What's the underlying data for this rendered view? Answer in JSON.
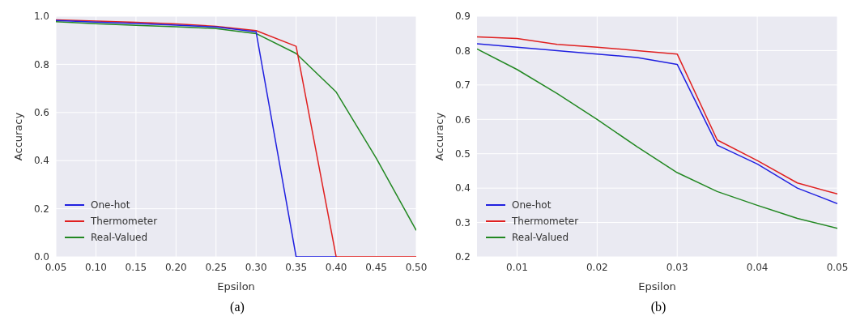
{
  "chart_data": [
    {
      "type": "line",
      "xlabel": "Epsilon",
      "ylabel": "Accuracy",
      "annotations": [
        "(a)"
      ],
      "grid": true,
      "legend": "bottom left",
      "x": [
        0.05,
        0.1,
        0.15,
        0.2,
        0.25,
        0.3,
        0.35,
        0.4,
        0.45,
        0.5
      ],
      "xlim": [
        0.05,
        0.5
      ],
      "xticks": [
        0.05,
        {
          "value": 0.1,
          "label": "0.10"
        },
        0.15,
        {
          "value": 0.2,
          "label": "0.20"
        },
        0.25,
        {
          "value": 0.3,
          "label": "0.30"
        },
        0.35,
        {
          "value": 0.4,
          "label": "0.40"
        },
        0.45,
        {
          "value": 0.5,
          "label": "0.50"
        }
      ],
      "ylim": [
        0,
        1
      ],
      "yticks": [
        {
          "value": 0,
          "label": "0.0"
        },
        0.2,
        0.4,
        0.6,
        0.8,
        {
          "value": 1,
          "label": "1.0"
        }
      ],
      "series": [
        {
          "name": "One-hot",
          "color": "#2020e0",
          "values": [
            0.982,
            0.976,
            0.97,
            0.963,
            0.955,
            0.935,
            0,
            0,
            null,
            null
          ]
        },
        {
          "name": "Thermometer",
          "color": "#e02020",
          "values": [
            0.985,
            0.98,
            0.975,
            0.968,
            0.958,
            0.94,
            0.875,
            0,
            0,
            0
          ]
        },
        {
          "name": "Real-Valued",
          "color": "#228822",
          "values": [
            0.977,
            0.969,
            0.962,
            0.956,
            0.949,
            0.928,
            0.845,
            0.685,
            0.41,
            0.11
          ]
        }
      ]
    },
    {
      "type": "line",
      "xlabel": "Epsilon",
      "ylabel": "Accuracy",
      "annotations": [
        "(b)"
      ],
      "grid": true,
      "legend": "bottom left",
      "x": [
        0.005,
        0.01,
        0.015,
        0.02,
        0.025,
        0.03,
        0.035,
        0.04,
        0.045,
        0.05
      ],
      "xlim": [
        0.005,
        0.05
      ],
      "xticks": [
        0.01,
        0.02,
        0.03,
        0.04,
        0.05
      ],
      "ylim": [
        0.2,
        0.9
      ],
      "yticks": [
        0.2,
        0.3,
        0.4,
        0.5,
        0.6,
        0.7,
        0.8,
        0.9
      ],
      "series": [
        {
          "name": "One-hot",
          "color": "#2020e0",
          "values": [
            0.82,
            0.81,
            0.8,
            0.79,
            0.78,
            0.76,
            0.525,
            0.47,
            0.4,
            0.355
          ]
        },
        {
          "name": "Thermometer",
          "color": "#e02020",
          "values": [
            0.84,
            0.835,
            0.818,
            0.81,
            0.8,
            0.79,
            0.54,
            0.48,
            0.415,
            0.383
          ]
        },
        {
          "name": "Real-Valued",
          "color": "#228822",
          "values": [
            0.805,
            0.745,
            0.675,
            0.6,
            0.52,
            0.445,
            0.39,
            0.35,
            0.312,
            0.283
          ]
        }
      ]
    }
  ]
}
